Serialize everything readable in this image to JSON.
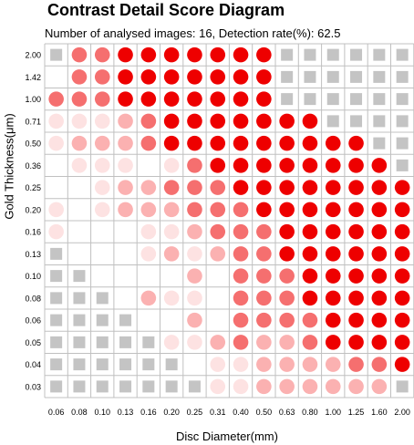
{
  "chart_data": {
    "type": "heatmap",
    "title": "Contrast Detail Score Diagram",
    "subtitle": "Number of analysed images: 16, Detection rate(%): 62.5",
    "xlabel": "Disc Diameter(mm)",
    "ylabel": "Gold Thickness(μm)",
    "x_categories": [
      "0.06",
      "0.08",
      "0.10",
      "0.13",
      "0.16",
      "0.20",
      "0.25",
      "0.31",
      "0.40",
      "0.50",
      "0.63",
      "0.80",
      "1.00",
      "1.25",
      "1.60",
      "2.00"
    ],
    "y_categories": [
      "2.00",
      "1.42",
      "1.00",
      "0.71",
      "0.50",
      "0.36",
      "0.25",
      "0.20",
      "0.16",
      "0.13",
      "0.10",
      "0.08",
      "0.06",
      "0.05",
      "0.04",
      "0.03"
    ],
    "cell_legend": {
      "S": "grey square",
      "0": "empty",
      "1-4": "circle, detection score intensity 1 (faint) to 4 (full red)"
    },
    "colors": {
      "level1": "#fde2e2",
      "level2": "#fbb1b1",
      "level3": "#f56f6f",
      "level4": "#ee0000",
      "square": "#c4c4c4",
      "grid": "#c0c0c0"
    },
    "rows": [
      [
        "S",
        3,
        3,
        4,
        4,
        4,
        4,
        4,
        4,
        4,
        "S",
        "S",
        "S",
        "S",
        "S",
        "S"
      ],
      [
        "0",
        3,
        3,
        4,
        4,
        4,
        4,
        4,
        4,
        4,
        "S",
        "S",
        "S",
        "S",
        "S",
        "S"
      ],
      [
        3,
        3,
        3,
        4,
        4,
        4,
        4,
        4,
        4,
        4,
        "S",
        "S",
        "S",
        "S",
        "S",
        "S"
      ],
      [
        1,
        1,
        1,
        2,
        3,
        4,
        4,
        4,
        4,
        4,
        4,
        4,
        "S",
        "S",
        "S",
        "S"
      ],
      [
        1,
        2,
        2,
        2,
        3,
        4,
        4,
        4,
        4,
        4,
        4,
        4,
        4,
        4,
        "S",
        "S"
      ],
      [
        0,
        1,
        1,
        1,
        0,
        1,
        3,
        4,
        4,
        4,
        4,
        4,
        4,
        4,
        4,
        "S"
      ],
      [
        0,
        0,
        1,
        2,
        2,
        3,
        3,
        3,
        4,
        4,
        4,
        4,
        4,
        4,
        4,
        4
      ],
      [
        1,
        0,
        1,
        2,
        2,
        2,
        3,
        3,
        3,
        4,
        4,
        4,
        4,
        4,
        4,
        4
      ],
      [
        1,
        0,
        0,
        0,
        1,
        1,
        2,
        3,
        3,
        3,
        4,
        4,
        4,
        4,
        4,
        4
      ],
      [
        "S",
        0,
        0,
        0,
        1,
        2,
        1,
        2,
        3,
        3,
        4,
        4,
        4,
        4,
        4,
        4
      ],
      [
        "S",
        "S",
        0,
        0,
        0,
        0,
        2,
        0,
        3,
        3,
        3,
        4,
        4,
        4,
        4,
        4
      ],
      [
        "S",
        "S",
        "S",
        0,
        2,
        1,
        1,
        0,
        3,
        3,
        3,
        4,
        4,
        4,
        4,
        4
      ],
      [
        "S",
        "S",
        "S",
        "S",
        0,
        0,
        2,
        0,
        3,
        3,
        3,
        3,
        4,
        4,
        4,
        4
      ],
      [
        "S",
        "S",
        "S",
        "S",
        "S",
        1,
        1,
        2,
        3,
        2,
        2,
        3,
        4,
        4,
        4,
        4
      ],
      [
        "S",
        "S",
        "S",
        "S",
        "S",
        "S",
        0,
        1,
        1,
        2,
        2,
        2,
        2,
        3,
        3,
        4
      ],
      [
        "S",
        "S",
        "S",
        "S",
        "S",
        "S",
        "S",
        1,
        1,
        2,
        2,
        2,
        2,
        2,
        2,
        "S"
      ]
    ]
  }
}
